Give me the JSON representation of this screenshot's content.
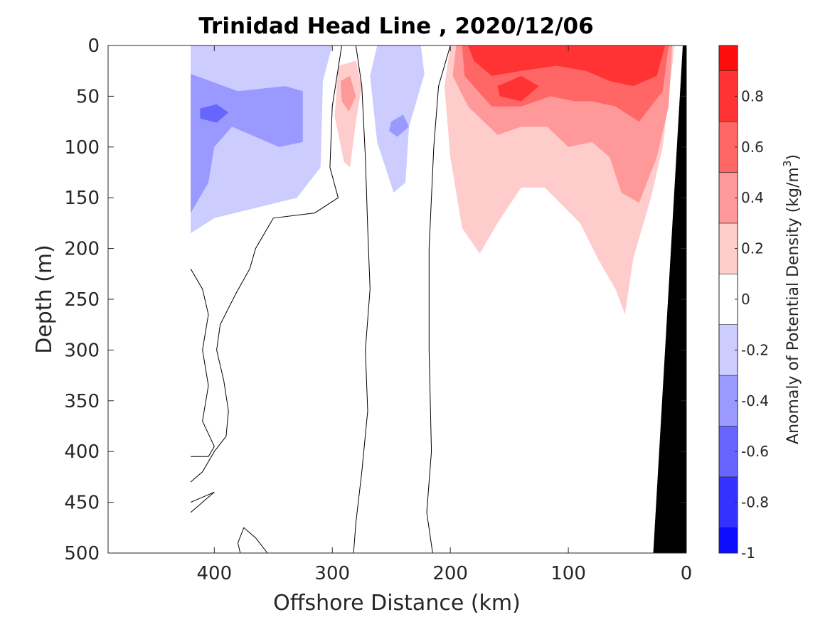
{
  "chart_data": {
    "type": "heatmap",
    "subtype": "filled-contour",
    "title": "Trinidad Head Line , 2020/12/06",
    "xlabel": "Offshore Distance (km)",
    "ylabel": "Depth (m)",
    "colorbar_label": "Anomaly of Potential Density (kg/m",
    "colorbar_label_sup": "3",
    "colorbar_label_end": ")",
    "xlim": [
      490,
      0
    ],
    "x_reversed": true,
    "ylim": [
      0,
      500
    ],
    "y_reversed": true,
    "x_ticks": [
      400,
      300,
      200,
      100,
      0
    ],
    "x_tick_labels": [
      "400",
      "300",
      "200",
      "100",
      "0"
    ],
    "y_ticks": [
      0,
      50,
      100,
      150,
      200,
      250,
      300,
      350,
      400,
      450,
      500
    ],
    "y_tick_labels": [
      "0",
      "50",
      "100",
      "150",
      "200",
      "250",
      "300",
      "350",
      "400",
      "450",
      "500"
    ],
    "color_range": [
      -1,
      1
    ],
    "color_levels": [
      -1,
      -0.9,
      -0.7,
      -0.5,
      -0.3,
      -0.1,
      0.1,
      0.3,
      0.5,
      0.7,
      0.9,
      1.0
    ],
    "colorbar_ticks": [
      0.8,
      0.6,
      0.4,
      0.2,
      0,
      -0.2,
      -0.4,
      -0.6,
      -0.8,
      -1
    ],
    "colorbar_tick_labels": [
      "0.8",
      "0.6",
      "0.4",
      "0.2",
      "0",
      "-0.2",
      "-0.4",
      "-0.6",
      "-0.8",
      "-1"
    ],
    "colormap": "blue-white-red",
    "colors": {
      "negative": "#0000ff",
      "zero": "#ffffff",
      "positive": "#ff0000",
      "bathymetry": "#000000",
      "contour_line": "#000000"
    },
    "grid": false,
    "regions": [
      {
        "level": -0.2,
        "points": [
          [
            420,
            0
          ],
          [
            300,
            0
          ],
          [
            308,
            35
          ],
          [
            310,
            120
          ],
          [
            330,
            150
          ],
          [
            365,
            160
          ],
          [
            400,
            170
          ],
          [
            420,
            185
          ]
        ]
      },
      {
        "level": -0.4,
        "points": [
          [
            420,
            28
          ],
          [
            380,
            45
          ],
          [
            340,
            40
          ],
          [
            325,
            45
          ],
          [
            325,
            95
          ],
          [
            345,
            100
          ],
          [
            365,
            90
          ],
          [
            385,
            80
          ],
          [
            400,
            100
          ],
          [
            405,
            135
          ],
          [
            420,
            165
          ]
        ]
      },
      {
        "level": -0.4,
        "points": [
          [
            350,
            62
          ],
          [
            335,
            58
          ],
          [
            325,
            65
          ],
          [
            338,
            72
          ],
          [
            352,
            68
          ]
        ]
      },
      {
        "level": -0.6,
        "points": [
          [
            412,
            62
          ],
          [
            398,
            58
          ],
          [
            388,
            66
          ],
          [
            398,
            76
          ],
          [
            412,
            72
          ]
        ]
      },
      {
        "level": -0.2,
        "points": [
          [
            262,
            0
          ],
          [
            225,
            0
          ],
          [
            222,
            28
          ],
          [
            235,
            80
          ],
          [
            238,
            135
          ],
          [
            248,
            145
          ],
          [
            262,
            95
          ],
          [
            268,
            30
          ]
        ]
      },
      {
        "level": -0.4,
        "points": [
          [
            250,
            75
          ],
          [
            240,
            68
          ],
          [
            235,
            80
          ],
          [
            245,
            90
          ],
          [
            252,
            84
          ]
        ]
      },
      {
        "level": 0.2,
        "points": [
          [
            295,
            20
          ],
          [
            280,
            15
          ],
          [
            275,
            40
          ],
          [
            280,
            75
          ],
          [
            285,
            120
          ],
          [
            290,
            115
          ],
          [
            298,
            70
          ]
        ]
      },
      {
        "level": 0.4,
        "points": [
          [
            293,
            35
          ],
          [
            285,
            30
          ],
          [
            280,
            50
          ],
          [
            286,
            65
          ],
          [
            292,
            55
          ]
        ]
      },
      {
        "level": 0.2,
        "points": [
          [
            200,
            0
          ],
          [
            10,
            0
          ],
          [
            20,
            100
          ],
          [
            30,
            150
          ],
          [
            45,
            210
          ],
          [
            52,
            265
          ],
          [
            60,
            240
          ],
          [
            75,
            210
          ],
          [
            90,
            175
          ],
          [
            120,
            140
          ],
          [
            140,
            140
          ],
          [
            160,
            175
          ],
          [
            175,
            205
          ],
          [
            190,
            180
          ],
          [
            200,
            110
          ],
          [
            205,
            40
          ]
        ]
      },
      {
        "level": 0.4,
        "points": [
          [
            195,
            0
          ],
          [
            12,
            0
          ],
          [
            15,
            60
          ],
          [
            25,
            110
          ],
          [
            40,
            155
          ],
          [
            55,
            145
          ],
          [
            65,
            110
          ],
          [
            80,
            95
          ],
          [
            100,
            100
          ],
          [
            118,
            80
          ],
          [
            140,
            80
          ],
          [
            160,
            88
          ],
          [
            185,
            60
          ],
          [
            198,
            30
          ]
        ]
      },
      {
        "level": 0.6,
        "points": [
          [
            190,
            0
          ],
          [
            15,
            0
          ],
          [
            20,
            45
          ],
          [
            40,
            75
          ],
          [
            60,
            60
          ],
          [
            80,
            55
          ],
          [
            95,
            55
          ],
          [
            115,
            50
          ],
          [
            140,
            60
          ],
          [
            165,
            60
          ],
          [
            188,
            30
          ]
        ]
      },
      {
        "level": 0.8,
        "points": [
          [
            185,
            0
          ],
          [
            18,
            0
          ],
          [
            25,
            30
          ],
          [
            45,
            40
          ],
          [
            65,
            35
          ],
          [
            85,
            25
          ],
          [
            110,
            20
          ],
          [
            140,
            25
          ],
          [
            165,
            30
          ],
          [
            180,
            15
          ]
        ]
      },
      {
        "level": 0.8,
        "points": [
          [
            160,
            40
          ],
          [
            140,
            30
          ],
          [
            125,
            40
          ],
          [
            140,
            55
          ],
          [
            158,
            50
          ]
        ]
      },
      {
        "level": 0.8,
        "points": [
          [
            45,
            10
          ],
          [
            30,
            0
          ],
          [
            20,
            10
          ],
          [
            25,
            25
          ],
          [
            40,
            25
          ]
        ]
      }
    ],
    "zero_contours": [
      [
        [
          378,
          500
        ],
        [
          380,
          490
        ],
        [
          375,
          475
        ],
        [
          365,
          485
        ],
        [
          355,
          500
        ]
      ],
      [
        [
          292,
          0
        ],
        [
          300,
          60
        ],
        [
          302,
          120
        ],
        [
          295,
          150
        ],
        [
          315,
          165
        ],
        [
          350,
          170
        ],
        [
          365,
          200
        ],
        [
          370,
          220
        ],
        [
          382,
          245
        ],
        [
          395,
          275
        ],
        [
          398,
          300
        ],
        [
          392,
          330
        ],
        [
          388,
          360
        ],
        [
          390,
          385
        ],
        [
          400,
          400
        ],
        [
          410,
          420
        ],
        [
          420,
          430
        ]
      ],
      [
        [
          420,
          220
        ],
        [
          410,
          240
        ],
        [
          405,
          265
        ],
        [
          410,
          300
        ],
        [
          405,
          335
        ],
        [
          410,
          370
        ],
        [
          400,
          395
        ],
        [
          405,
          405
        ],
        [
          420,
          405
        ]
      ],
      [
        [
          280,
          0
        ],
        [
          275,
          40
        ],
        [
          272,
          110
        ],
        [
          270,
          180
        ],
        [
          268,
          240
        ],
        [
          272,
          300
        ],
        [
          270,
          360
        ],
        [
          275,
          420
        ],
        [
          280,
          470
        ],
        [
          282,
          500
        ]
      ],
      [
        [
          200,
          0
        ],
        [
          210,
          40
        ],
        [
          214,
          100
        ],
        [
          218,
          200
        ],
        [
          218,
          300
        ],
        [
          216,
          400
        ],
        [
          220,
          460
        ],
        [
          215,
          500
        ]
      ],
      [
        [
          420,
          460
        ],
        [
          400,
          440
        ],
        [
          420,
          450
        ]
      ]
    ],
    "bathymetry": [
      [
        3,
        0
      ],
      [
        28,
        500
      ],
      [
        0,
        500
      ],
      [
        0,
        0
      ]
    ]
  }
}
